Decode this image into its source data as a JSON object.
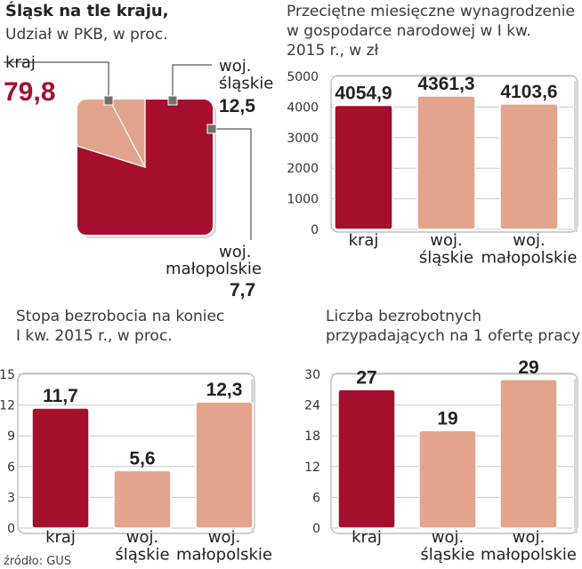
{
  "source": "źródło: GUS",
  "chart_data": [
    {
      "type": "pie",
      "title": "Śląsk na tle kraju,",
      "subtitle": "Udział w PKB, w proc.",
      "slices": [
        {
          "label": "kraj",
          "value": 79.8,
          "value_label": "79,8",
          "color": "#a50f2d"
        },
        {
          "label": "woj.\nśląskie",
          "value": 12.5,
          "value_label": "12,5",
          "color": "#e2a48c"
        },
        {
          "label": "woj.\nmałopolskie",
          "value": 7.7,
          "value_label": "7,7",
          "color": "#e2a48c"
        }
      ]
    },
    {
      "type": "bar",
      "title": "Przeciętne miesięczne wynagrodzenie\nw gospodarce narodowej w I kw.\n2015 r., w zł",
      "categories": [
        "kraj",
        "woj.\nśląskie",
        "woj.\nmałopolskie"
      ],
      "values": [
        4054.9,
        4361.3,
        4103.6
      ],
      "value_labels": [
        "4054,9",
        "4361,3",
        "4103,6"
      ],
      "colors": [
        "#a50f2d",
        "#e2a48c",
        "#e2a48c"
      ],
      "ylim": [
        0,
        5000
      ],
      "yticks": [
        0,
        1000,
        2000,
        3000,
        4000,
        5000
      ],
      "grid": true
    },
    {
      "type": "bar",
      "title": "Stopa bezrobocia na koniec\nI kw. 2015 r., w proc.",
      "categories": [
        "kraj",
        "woj.\nśląskie",
        "woj.\nmałopolskie"
      ],
      "values": [
        11.7,
        5.6,
        12.3
      ],
      "value_labels": [
        "11,7",
        "5,6",
        "12,3"
      ],
      "colors": [
        "#a50f2d",
        "#e2a48c",
        "#e2a48c"
      ],
      "ylim": [
        0,
        15
      ],
      "yticks": [
        0,
        3,
        6,
        9,
        12,
        15
      ],
      "grid": true
    },
    {
      "type": "bar",
      "title": "Liczba bezrobotnych\nprzypadających na 1 ofertę pracy",
      "categories": [
        "kraj",
        "woj.\nśląskie",
        "woj.\nmałopolskie"
      ],
      "values": [
        27,
        19,
        29
      ],
      "value_labels": [
        "27",
        "19",
        "29"
      ],
      "colors": [
        "#a50f2d",
        "#e2a48c",
        "#e2a48c"
      ],
      "ylim": [
        0,
        30
      ],
      "yticks": [
        0,
        6,
        12,
        18,
        24,
        30
      ],
      "grid": true
    }
  ]
}
